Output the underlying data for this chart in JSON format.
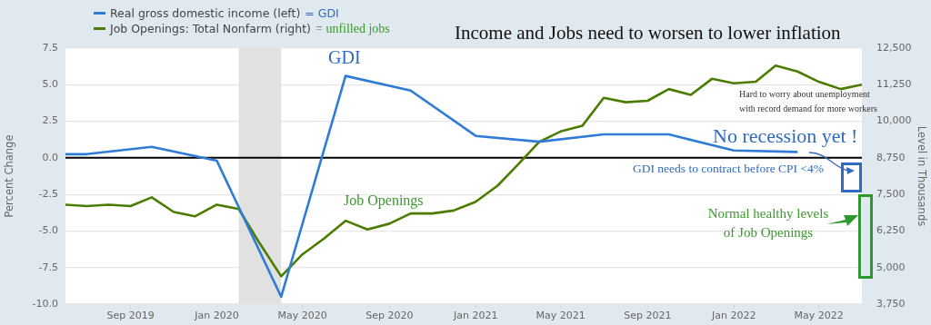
{
  "chart_data": {
    "type": "line",
    "title": "Income and Jobs need to worsen to lower inflation",
    "ylabel": "Percent Change",
    "y2label": "Level in Thousands",
    "xlim": [
      "2019-06-01",
      "2022-07-01"
    ],
    "xticks": [
      {
        "value": "2019-09-01",
        "label": "Sep 2019"
      },
      {
        "value": "2020-01-01",
        "label": "Jan 2020"
      },
      {
        "value": "2020-05-01",
        "label": "May 2020"
      },
      {
        "value": "2020-09-01",
        "label": "Sep 2020"
      },
      {
        "value": "2021-01-01",
        "label": "Jan 2021"
      },
      {
        "value": "2021-05-01",
        "label": "May 2021"
      },
      {
        "value": "2021-09-01",
        "label": "Sep 2021"
      },
      {
        "value": "2022-01-01",
        "label": "Jan 2022"
      },
      {
        "value": "2022-05-01",
        "label": "May 2022"
      }
    ],
    "ylim": [
      -10,
      7.5
    ],
    "yticks": [
      {
        "value": -10,
        "label": "-10.0"
      },
      -7.5,
      {
        "value": -5,
        "label": "-5.0"
      },
      -2.5,
      {
        "value": 0,
        "label": "0.0"
      },
      2.5,
      {
        "value": 5,
        "label": "5.0"
      },
      7.5
    ],
    "y2lim": [
      3750,
      12500
    ],
    "y2ticks": [
      {
        "value": 3750,
        "label": "3,750"
      },
      {
        "value": 5000,
        "label": "5,000"
      },
      {
        "value": 6250,
        "label": "6,250"
      },
      {
        "value": 7500,
        "label": "7,500"
      },
      {
        "value": 8750,
        "label": "8,750"
      },
      {
        "value": 10000,
        "label": "10,000"
      },
      {
        "value": 11250,
        "label": "11,250"
      },
      {
        "value": 12500,
        "label": "12,500"
      }
    ],
    "series": [
      {
        "name": "Real gross domestic income (left)",
        "color": "#2f7bd6",
        "x": [
          "2019-06-01",
          "2019-07-01",
          "2019-10-01",
          "2020-01-01",
          "2020-04-01",
          "2020-07-01",
          "2020-10-01",
          "2021-01-01",
          "2021-04-01",
          "2021-07-01",
          "2021-10-01",
          "2022-01-01",
          "2022-04-01"
        ],
        "values": [
          0.25,
          0.25,
          0.75,
          -0.2,
          -9.5,
          5.6,
          4.6,
          1.5,
          1.1,
          1.6,
          1.6,
          0.5,
          0.4
        ]
      },
      {
        "name": "Job Openings: Total Nonfarm (right)",
        "color": "#4a7c00",
        "axis": "y2",
        "x": [
          "2019-06",
          "2019-07",
          "2019-08",
          "2019-09",
          "2019-10",
          "2019-11",
          "2019-12",
          "2020-01",
          "2020-02",
          "2020-03",
          "2020-04",
          "2020-05",
          "2020-06",
          "2020-07",
          "2020-08",
          "2020-09",
          "2020-10",
          "2020-11",
          "2020-12",
          "2021-01",
          "2021-02",
          "2021-03",
          "2021-04",
          "2021-05",
          "2021-06",
          "2021-07",
          "2021-08",
          "2021-09",
          "2021-10",
          "2021-11",
          "2021-12",
          "2022-01",
          "2022-02",
          "2022-03",
          "2022-04",
          "2022-05",
          "2022-06",
          "2022-07"
        ],
        "values": [
          7150,
          7100,
          7150,
          7100,
          7400,
          6900,
          6750,
          7150,
          7000,
          5850,
          4700,
          5450,
          6000,
          6600,
          6300,
          6500,
          6850,
          6850,
          6950,
          7250,
          7800,
          8500,
          9300,
          9650,
          9850,
          10800,
          10650,
          10700,
          11100,
          10900,
          11450,
          11300,
          11350,
          11900,
          11700,
          11350,
          11100,
          11250
        ]
      }
    ],
    "bands": [
      {
        "axis": "x",
        "from": "2020-02-01",
        "to": "2020-04-01",
        "color": "#e1e1e1"
      }
    ],
    "ref_lines": [
      {
        "axis": "y",
        "value": 0,
        "color": "#000000"
      }
    ],
    "annotations": [
      "= GDI",
      "= unfilled jobs",
      "GDI",
      "Job Openings",
      "Hard to worry about unemployment with record demand for more workers",
      "No recession yet !",
      "GDI needs to contract before CPI <4%",
      "Normal healthy levels of Job Openings"
    ],
    "grid": "y",
    "legend": "top left",
    "marker": "none",
    "line_style": "solid"
  }
}
